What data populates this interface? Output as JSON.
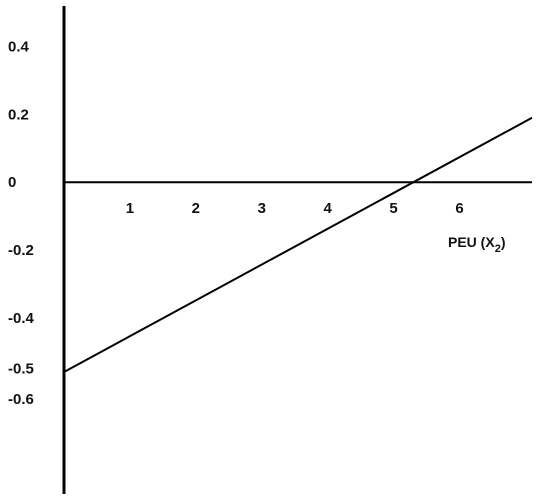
{
  "chart_data": {
    "type": "line",
    "title": "",
    "xlabel": "PEU (X",
    "xlabel_subscript": "2",
    "xlabel_close": ")",
    "ylabel": "",
    "xlim": [
      0,
      7.1
    ],
    "ylim": [
      -0.92,
      0.52
    ],
    "x_ticks": [
      1,
      2,
      3,
      4,
      5,
      6
    ],
    "x_tick_labels": [
      "1",
      "2",
      "3",
      "4",
      "5",
      "6"
    ],
    "y_tick_labels": [
      {
        "value": 0.4,
        "label": "0.4"
      },
      {
        "value": 0.2,
        "label": "0.2"
      },
      {
        "value": 0,
        "label": "0"
      },
      {
        "value": -0.2,
        "label": "-0.2"
      },
      {
        "value": -0.4,
        "label": "-0.4"
      },
      {
        "value": -0.55,
        "label": "-0.5"
      },
      {
        "value": -0.64,
        "label": "-0.6"
      }
    ],
    "grid": false,
    "series": [
      {
        "x": [
          0,
          7.1
        ],
        "y": [
          -0.56,
          0.19
        ]
      }
    ],
    "colors": {
      "line": "#000000",
      "axis": "#000000"
    }
  }
}
